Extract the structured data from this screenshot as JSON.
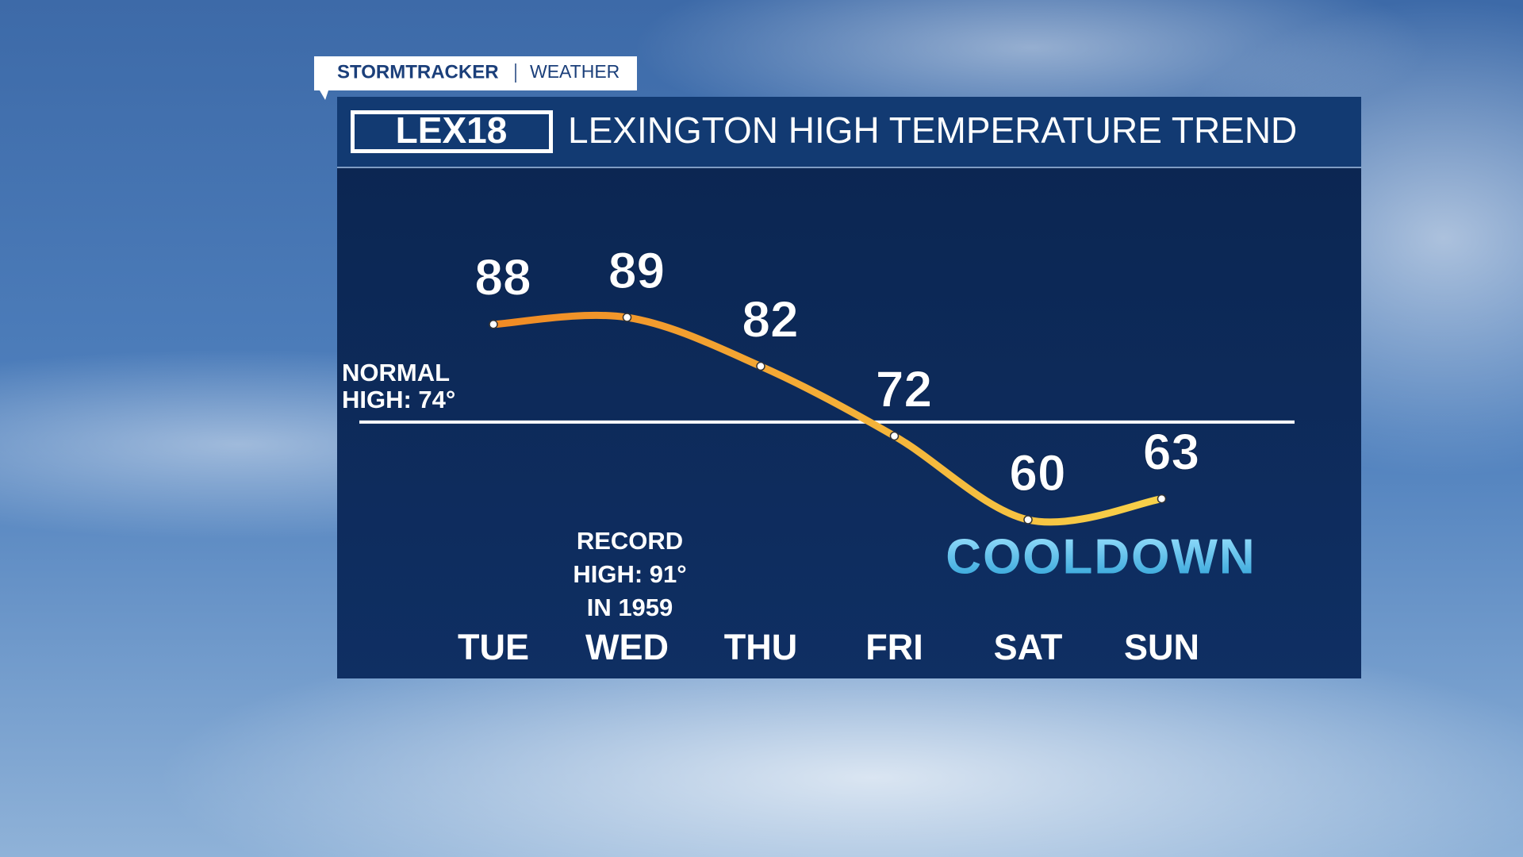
{
  "brand": {
    "stormtracker": "STORMTRACKER",
    "weather": "WEATHER",
    "logo": "LEX18"
  },
  "chart_data": {
    "type": "line",
    "title": "LEXINGTON HIGH TEMPERATURE TREND",
    "categories": [
      "TUE",
      "WED",
      "THU",
      "FRI",
      "SAT",
      "SUN"
    ],
    "values": [
      88,
      89,
      82,
      72,
      60,
      63
    ],
    "color": "#f5a623",
    "normal_high": {
      "value": 74,
      "label": [
        "NORMAL",
        "HIGH: 74°"
      ]
    },
    "record_high": [
      "RECORD",
      "HIGH: 91°",
      "IN 1959"
    ],
    "banner": "COOLDOWN"
  }
}
